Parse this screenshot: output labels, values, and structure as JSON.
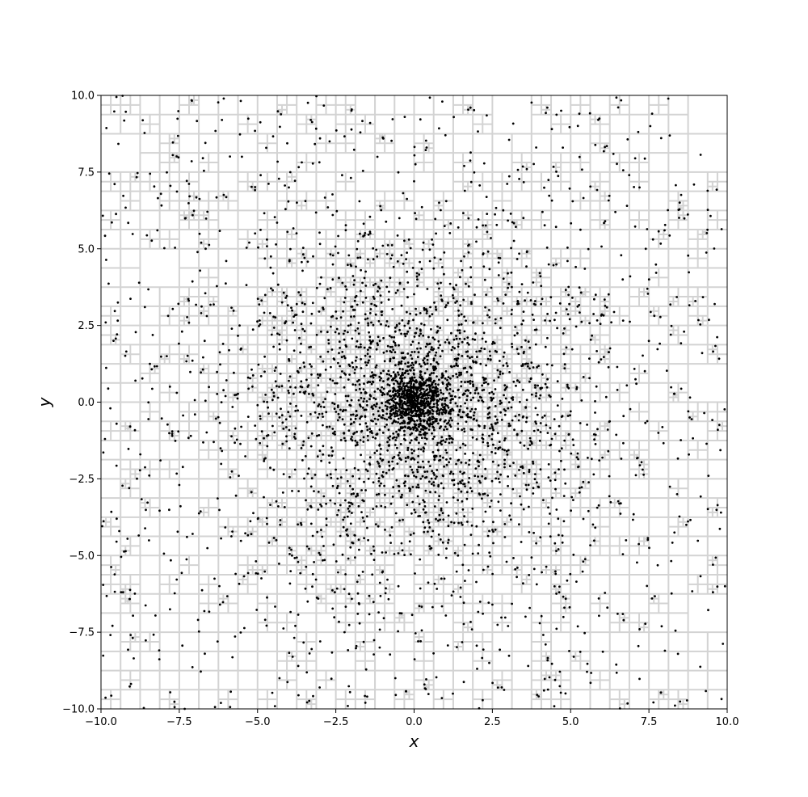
{
  "chart_data": {
    "type": "scatter",
    "title": "",
    "xlabel": "x",
    "ylabel": "y",
    "xlim": [
      -10,
      10
    ],
    "ylim": [
      -10,
      10
    ],
    "x_ticks": [
      -10.0,
      -7.5,
      -5.0,
      -2.5,
      0.0,
      2.5,
      5.0,
      7.5,
      10.0
    ],
    "y_ticks": [
      -10.0,
      -7.5,
      -5.0,
      -2.5,
      0.0,
      2.5,
      5.0,
      7.5,
      10.0
    ],
    "x_tick_labels": [
      "−10.0",
      "−7.5",
      "−5.0",
      "−2.5",
      "0.0",
      "2.5",
      "5.0",
      "7.5",
      "10.0"
    ],
    "y_tick_labels": [
      "−10.0",
      "−7.5",
      "−5.0",
      "−2.5",
      "0.0",
      "2.5",
      "5.0",
      "7.5",
      "10.0"
    ],
    "grid": false,
    "legend": "none",
    "overlay": "quadtree cell boundaries",
    "colors": {
      "points": "#000000",
      "cells": "#d3d3d3",
      "axes": "#000000"
    },
    "series": [
      {
        "points": [
          [
            0.0,
            0.0
          ],
          [
            0.3,
            0.2
          ],
          [
            -0.2,
            0.4
          ],
          [
            0.5,
            -0.3
          ],
          [
            -0.4,
            -0.2
          ],
          [
            0.1,
            -0.6
          ],
          [
            -0.6,
            0.1
          ],
          [
            0.7,
            0.5
          ],
          [
            -0.3,
            0.8
          ],
          [
            0.9,
            -0.1
          ],
          [
            -0.8,
            -0.5
          ],
          [
            0.2,
            1.0
          ],
          [
            -1.0,
            0.3
          ],
          [
            1.1,
            0.6
          ],
          [
            -0.5,
            -1.1
          ],
          [
            0.6,
            -1.2
          ],
          [
            -1.3,
            -0.4
          ],
          [
            1.4,
            -0.7
          ],
          [
            -1.2,
            1.2
          ],
          [
            0.4,
            1.5
          ],
          [
            -1.6,
            0.6
          ],
          [
            1.7,
            0.2
          ],
          [
            -0.7,
            1.8
          ],
          [
            1.3,
            1.4
          ],
          [
            -1.9,
            -1.0
          ],
          [
            0.8,
            -1.9
          ],
          [
            2.0,
            -0.6
          ],
          [
            -2.1,
            0.2
          ],
          [
            0.1,
            -2.2
          ],
          [
            -1.4,
            -1.8
          ],
          [
            2.3,
            1.2
          ],
          [
            -2.4,
            1.6
          ],
          [
            1.6,
            -2.3
          ],
          [
            -0.9,
            2.5
          ],
          [
            2.6,
            -1.5
          ],
          [
            -2.7,
            -0.8
          ],
          [
            0.5,
            2.8
          ],
          [
            -1.8,
            2.4
          ],
          [
            2.9,
            0.4
          ],
          [
            -3.0,
            0.9
          ],
          [
            1.9,
            2.6
          ],
          [
            -2.5,
            -2.2
          ],
          [
            3.2,
            -0.9
          ],
          [
            -0.4,
            -3.1
          ],
          [
            0.9,
            3.3
          ],
          [
            -3.3,
            1.8
          ],
          [
            2.7,
            -2.5
          ],
          [
            -1.2,
            -3.4
          ],
          [
            3.5,
            1.6
          ],
          [
            -3.6,
            -1.5
          ],
          [
            1.1,
            -3.7
          ],
          [
            -2.2,
            3.4
          ],
          [
            3.8,
            -2.0
          ],
          [
            -0.2,
            3.9
          ],
          [
            2.3,
            3.5
          ],
          [
            -4.0,
            0.3
          ],
          [
            4.1,
            0.9
          ],
          [
            -3.2,
            -2.9
          ],
          [
            0.6,
            -4.2
          ],
          [
            -4.3,
            2.2
          ],
          [
            3.1,
            -3.3
          ],
          [
            -1.7,
            4.3
          ],
          [
            4.4,
            -1.2
          ],
          [
            -2.8,
            -3.8
          ],
          [
            1.5,
            4.6
          ],
          [
            -4.7,
            -1.1
          ],
          [
            4.8,
            2.4
          ],
          [
            -0.9,
            -4.9
          ],
          [
            2.9,
            -4.4
          ],
          [
            -4.1,
            3.4
          ],
          [
            5.0,
            -0.3
          ],
          [
            -3.6,
            -4.0
          ],
          [
            0.3,
            5.2
          ],
          [
            -5.3,
            0.8
          ],
          [
            3.8,
            3.9
          ],
          [
            -2.1,
            -5.1
          ],
          [
            5.4,
            -2.6
          ],
          [
            -1.4,
            5.5
          ],
          [
            4.6,
            -3.8
          ],
          [
            -5.6,
            -2.4
          ],
          [
            2.0,
            5.7
          ],
          [
            -4.5,
            4.2
          ],
          [
            5.9,
            1.3
          ],
          [
            -0.5,
            -6.0
          ],
          [
            3.3,
            -5.4
          ],
          [
            -6.1,
            1.9
          ],
          [
            4.9,
            4.6
          ],
          [
            -3.9,
            -5.0
          ],
          [
            6.2,
            -1.6
          ],
          [
            -2.6,
            6.1
          ],
          [
            1.2,
            -6.3
          ],
          [
            -6.4,
            -1.3
          ],
          [
            5.8,
            3.5
          ],
          [
            -5.2,
            -4.3
          ],
          [
            0.8,
            6.5
          ],
          [
            6.6,
            -3.3
          ],
          [
            -4.7,
            5.3
          ],
          [
            2.5,
            -6.6
          ],
          [
            -6.8,
            2.9
          ],
          [
            6.3,
            2.6
          ],
          [
            -1.8,
            -6.9
          ],
          [
            4.1,
            6.2
          ],
          [
            -7.0,
            -0.4
          ],
          [
            7.1,
            0.6
          ],
          [
            -3.4,
            -6.5
          ],
          [
            0.0,
            7.2
          ],
          [
            5.4,
            -5.2
          ],
          [
            -6.0,
            4.6
          ],
          [
            7.3,
            -2.2
          ],
          [
            -2.3,
            7.4
          ],
          [
            3.0,
            -7.3
          ],
          [
            -7.5,
            -2.7
          ],
          [
            6.9,
            4.1
          ],
          [
            -5.7,
            -5.6
          ],
          [
            1.6,
            7.7
          ],
          [
            7.8,
            -1.0
          ],
          [
            -4.0,
            7.0
          ],
          [
            4.8,
            -6.7
          ],
          [
            -7.9,
            1.5
          ],
          [
            6.1,
            5.9
          ],
          [
            -1.1,
            -8.0
          ],
          [
            3.6,
            7.6
          ],
          [
            -8.1,
            -1.9
          ],
          [
            8.2,
            2.2
          ],
          [
            -3.0,
            -7.8
          ],
          [
            0.4,
            8.3
          ],
          [
            5.9,
            -6.4
          ],
          [
            -6.8,
            5.2
          ],
          [
            8.4,
            -3.0
          ],
          [
            -2.7,
            8.5
          ],
          [
            2.4,
            -8.5
          ],
          [
            -8.6,
            3.1
          ],
          [
            7.4,
            5.0
          ],
          [
            -6.2,
            -6.6
          ],
          [
            1.0,
            8.7
          ],
          [
            8.8,
            -0.5
          ],
          [
            -4.9,
            7.4
          ],
          [
            4.2,
            -7.9
          ],
          [
            -8.9,
            0.7
          ],
          [
            6.8,
            6.4
          ],
          [
            -0.6,
            -9.0
          ],
          [
            3.9,
            8.3
          ],
          [
            -9.1,
            -2.8
          ],
          [
            9.2,
            1.6
          ],
          [
            -3.7,
            -8.6
          ],
          [
            -0.3,
            9.3
          ],
          [
            6.5,
            -6.9
          ],
          [
            -7.3,
            6.0
          ],
          [
            9.4,
            -2.4
          ],
          [
            -2.0,
            9.5
          ],
          [
            2.8,
            -9.3
          ],
          [
            -9.6,
            2.0
          ],
          [
            8.0,
            5.6
          ],
          [
            -6.9,
            -7.1
          ],
          [
            1.8,
            9.6
          ],
          [
            9.7,
            -0.9
          ],
          [
            -5.5,
            8.0
          ],
          [
            5.1,
            -8.3
          ],
          [
            -9.7,
            -0.2
          ],
          [
            7.2,
            7.0
          ],
          [
            -1.5,
            -9.6
          ],
          [
            4.4,
            8.9
          ],
          [
            -9.5,
            -3.8
          ],
          [
            9.6,
            3.2
          ],
          [
            -4.3,
            -9.0
          ],
          [
            0.9,
            9.8
          ],
          [
            7.6,
            -6.4
          ],
          [
            -8.2,
            5.6
          ],
          [
            9.8,
            -3.6
          ],
          [
            -3.3,
            9.2
          ],
          [
            0.2,
            0.6
          ],
          [
            -0.1,
            -0.3
          ],
          [
            0.4,
            0.1
          ],
          [
            -0.5,
            0.5
          ],
          [
            0.6,
            0.3
          ],
          [
            -0.2,
            -0.7
          ],
          [
            0.8,
            -0.4
          ],
          [
            -0.9,
            0.0
          ],
          [
            0.0,
            0.9
          ],
          [
            0.3,
            -0.9
          ],
          [
            -0.6,
            0.9
          ],
          [
            1.0,
            -0.8
          ],
          [
            -1.1,
            -0.9
          ],
          [
            1.2,
            0.1
          ],
          [
            -0.1,
            1.2
          ],
          [
            0.7,
            1.1
          ],
          [
            -1.3,
            0.8
          ],
          [
            1.0,
            -1.3
          ],
          [
            -0.8,
            -1.4
          ],
          [
            1.5,
            0.9
          ],
          [
            -1.5,
            -0.1
          ],
          [
            0.3,
            -1.6
          ],
          [
            -0.4,
            1.6
          ],
          [
            1.8,
            -0.3
          ],
          [
            -1.7,
            1.4
          ],
          [
            1.2,
            1.7
          ],
          [
            -2.0,
            -0.7
          ],
          [
            0.6,
            2.1
          ],
          [
            2.2,
            0.8
          ],
          [
            -1.1,
            -2.1
          ],
          [
            1.4,
            -1.9
          ],
          [
            -2.3,
            1.0
          ],
          [
            0.0,
            -2.4
          ],
          [
            2.4,
            -1.1
          ],
          [
            -0.6,
            2.3
          ],
          [
            -2.6,
            -1.6
          ],
          [
            2.5,
            1.9
          ],
          [
            -1.6,
            -2.6
          ],
          [
            1.8,
            -2.8
          ],
          [
            -2.9,
            0.0
          ],
          [
            0.2,
            2.9
          ],
          [
            3.0,
            -0.2
          ],
          [
            -1.4,
            2.9
          ],
          [
            2.2,
            -3.0
          ],
          [
            -3.1,
            -1.1
          ],
          [
            1.0,
            3.1
          ],
          [
            -2.0,
            -3.0
          ],
          [
            3.3,
            0.7
          ],
          [
            -3.4,
            0.5
          ],
          [
            0.3,
            -3.5
          ],
          [
            -0.8,
            3.6
          ],
          [
            3.7,
            -1.4
          ],
          [
            -2.6,
            2.8
          ],
          [
            2.6,
            2.7
          ],
          [
            -3.8,
            -2.2
          ],
          [
            1.7,
            -3.9
          ],
          [
            -4.0,
            1.4
          ],
          [
            0.1,
            4.0
          ],
          [
            4.1,
            -0.5
          ],
          [
            -1.5,
            -4.1
          ],
          [
            4.2,
            1.8
          ],
          [
            -4.3,
            -0.5
          ],
          [
            2.4,
            -4.2
          ],
          [
            -2.6,
            4.0
          ],
          [
            3.3,
            3.2
          ],
          [
            -3.4,
            -3.5
          ],
          [
            0.9,
            4.4
          ],
          [
            4.5,
            -2.3
          ],
          [
            -4.6,
            2.9
          ],
          [
            -0.4,
            -4.6
          ],
          [
            -4.8,
            -3.1
          ],
          [
            2.7,
            4.7
          ],
          [
            4.9,
            0.5
          ],
          [
            -5.0,
            -0.1
          ],
          [
            1.4,
            -5.0
          ],
          [
            -1.0,
            5.1
          ],
          [
            5.2,
            -1.8
          ],
          [
            -3.5,
            4.7
          ],
          [
            3.9,
            -4.6
          ],
          [
            -4.4,
            -4.5
          ]
        ]
      }
    ]
  }
}
